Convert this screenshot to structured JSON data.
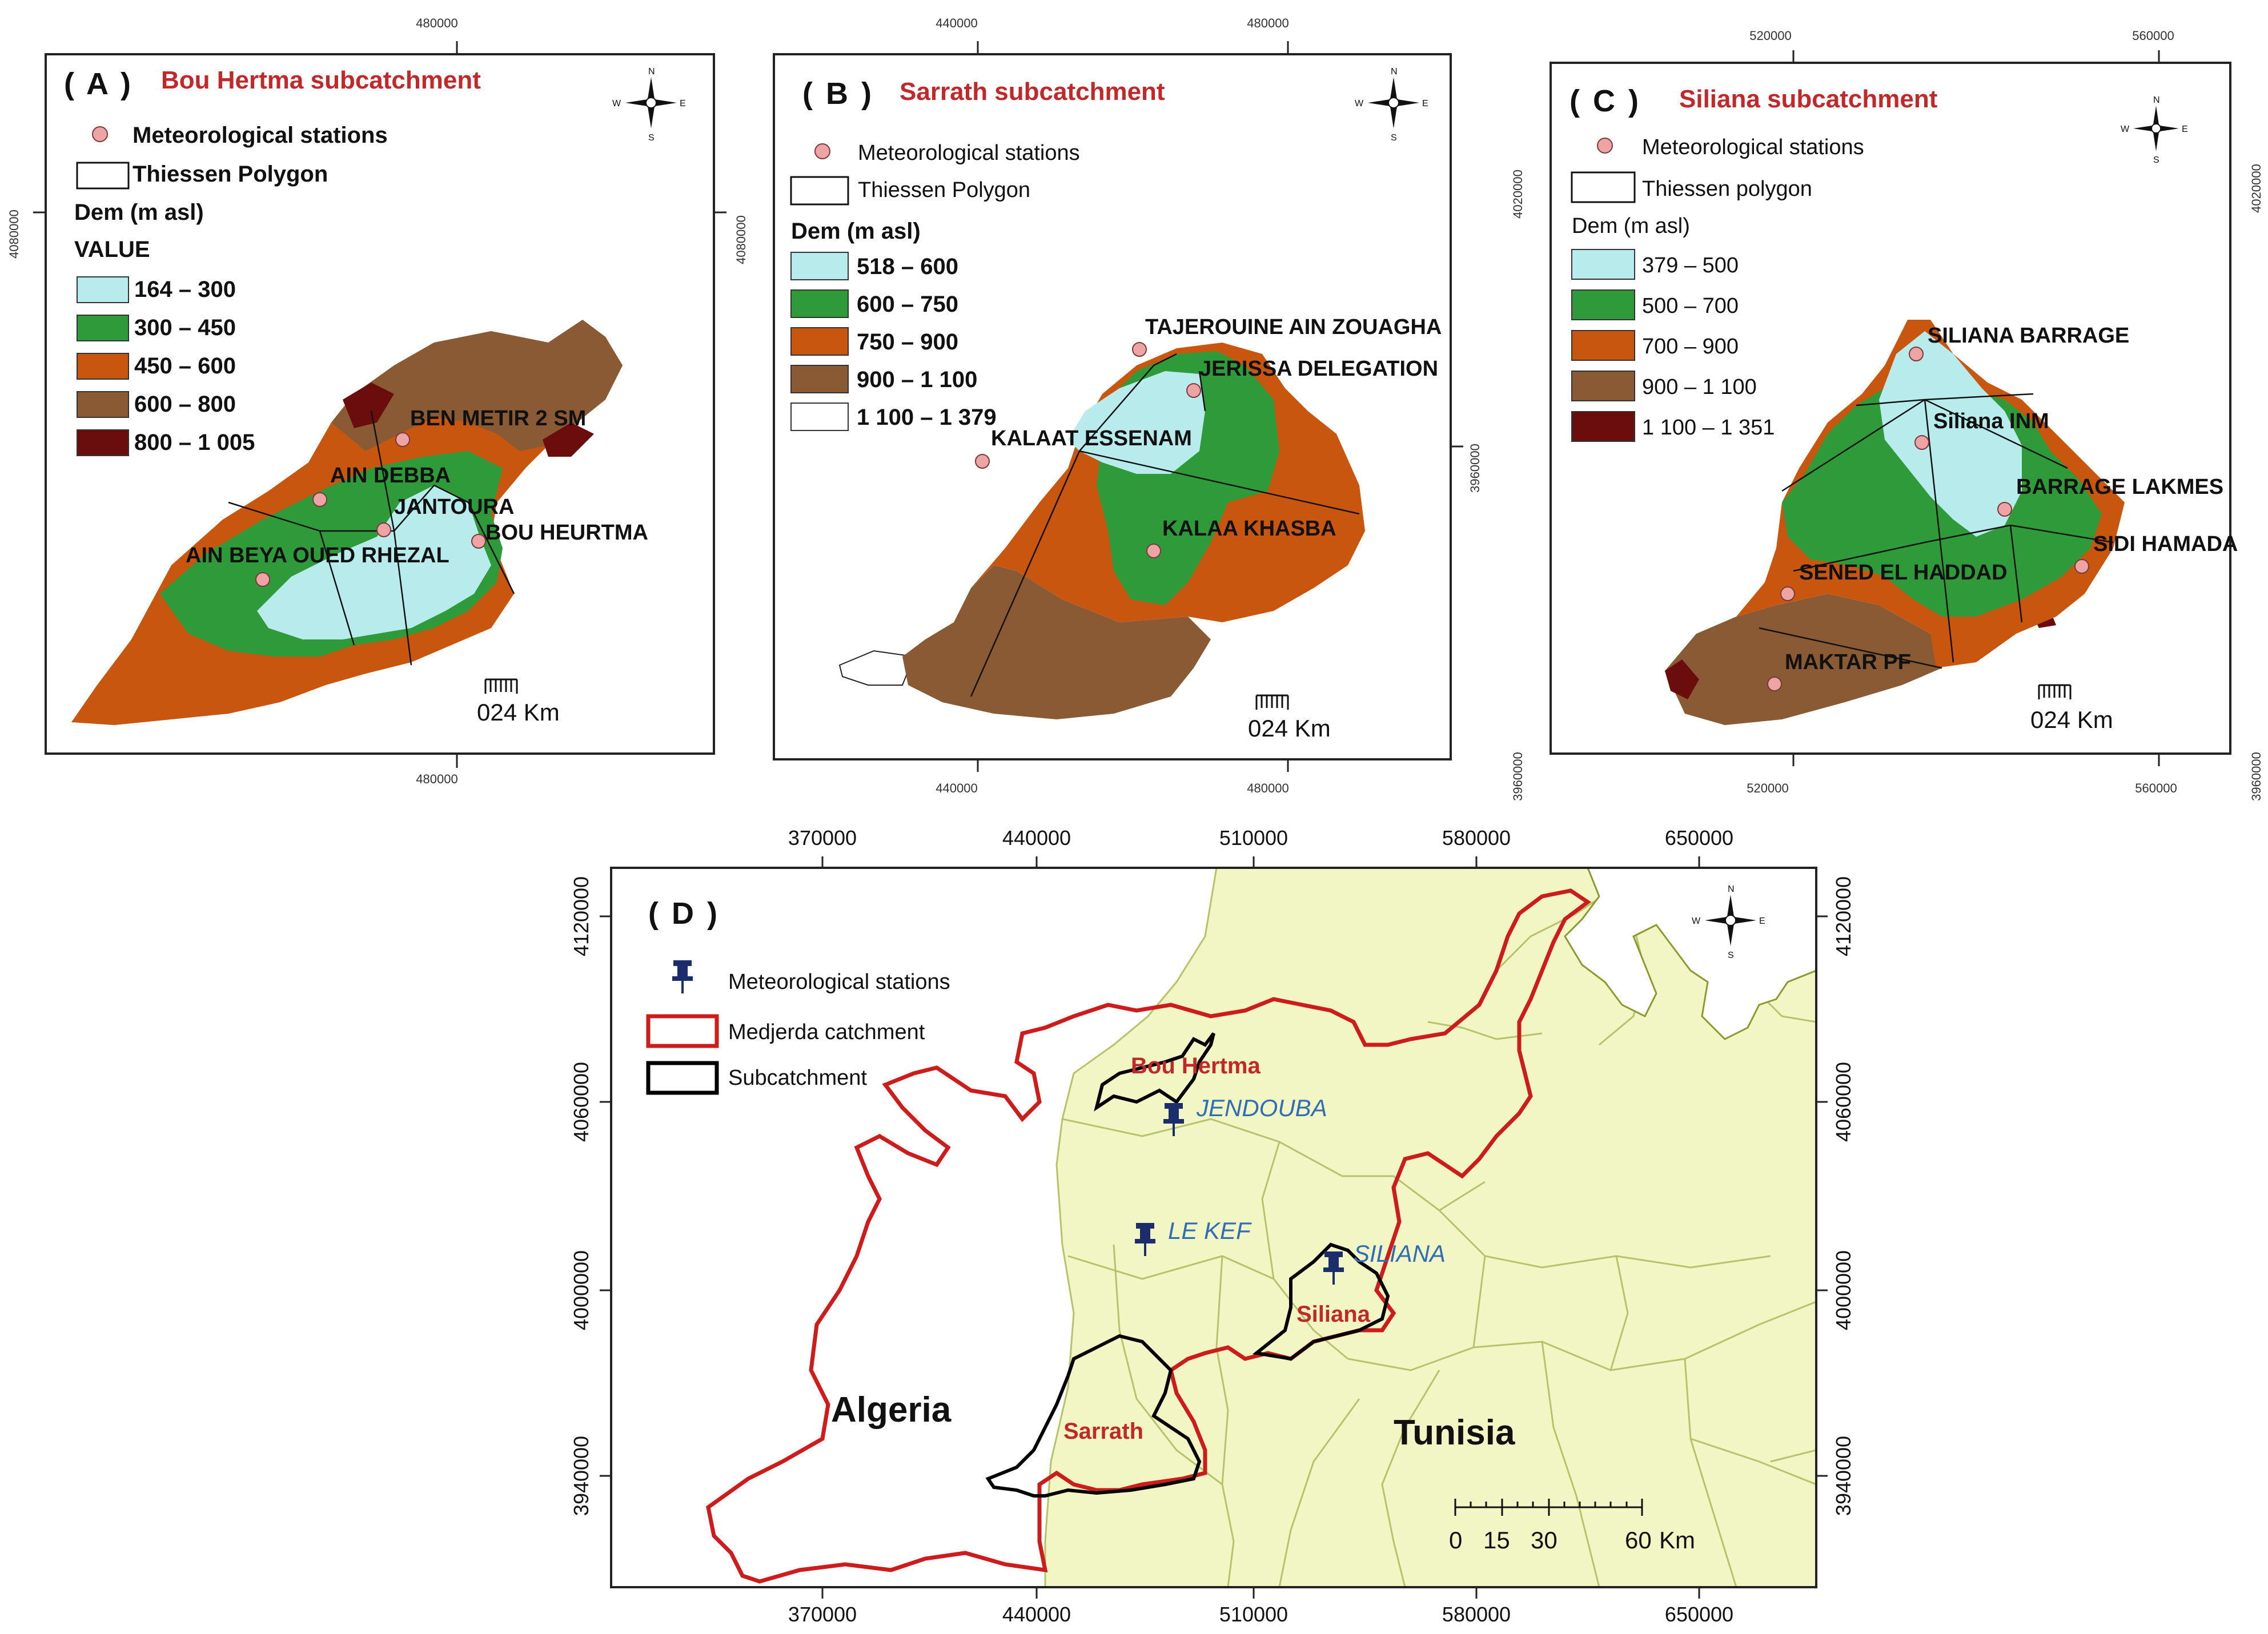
{
  "colors": {
    "c1": "#b8ecec",
    "c2": "#2f9a3a",
    "c3": "#c8560f",
    "c4": "#8a5a35",
    "c5": "#6b0d0d",
    "station": "#eea4a4",
    "map_bg": "#f2f5c4",
    "medjerda": "#cc1c1c",
    "subcatchment": "#000000",
    "pin": "#1b2d6b"
  },
  "panelA": {
    "label": "( A )",
    "title": "Bou Hertma subcatchment",
    "stations_legend": "Meteorological stations",
    "polygon_legend": "Thiessen Polygon",
    "dem_legend": "Dem (m asl)",
    "value_legend": "VALUE",
    "classes": [
      "164 – 300",
      "300 – 450",
      "450 – 600",
      "600 – 800",
      "800 – 1 005"
    ],
    "stations": [
      {
        "name": "BEN METIR 2 SM"
      },
      {
        "name": "AIN DEBBA"
      },
      {
        "name": "JANTOURA"
      },
      {
        "name": "BOU HEURTMA"
      },
      {
        "name": "AIN BEYA OUED RHEZAL"
      }
    ],
    "x_tick": "480000",
    "y_tick": "4080000",
    "scale": "024 Km",
    "compass": {
      "n": "N",
      "s": "S",
      "e": "E",
      "w": "W"
    }
  },
  "panelB": {
    "label": "( B )",
    "title": "Sarrath subcatchment",
    "stations_legend": "Meteorological stations",
    "polygon_legend": "Thiessen Polygon",
    "dem_legend": "Dem (m asl)",
    "classes": [
      "518 – 600",
      "600 – 750",
      "750 – 900",
      "900 – 1 100",
      "1 100 – 1 379"
    ],
    "stations": [
      {
        "name": "TAJEROUINE AIN ZOUAGHA"
      },
      {
        "name": "JERISSA DELEGATION"
      },
      {
        "name": "KALAAT ESSENAM"
      },
      {
        "name": "KALAA KHASBA"
      }
    ],
    "x_ticks": [
      "440000",
      "480000"
    ],
    "y_tick": "3960000",
    "scale": "024 Km",
    "compass": {
      "n": "N",
      "s": "S",
      "e": "E",
      "w": "W"
    }
  },
  "panelC": {
    "label": "( C )",
    "title": "Siliana subcatchment",
    "stations_legend": "Meteorological stations",
    "polygon_legend": "Thiessen polygon",
    "dem_legend": "Dem (m asl)",
    "classes": [
      "379 – 500",
      "500 – 700",
      "700 – 900",
      "900 – 1 100",
      "1 100 – 1 351"
    ],
    "stations": [
      {
        "name": "SILIANA BARRAGE"
      },
      {
        "name": "Siliana INM"
      },
      {
        "name": "BARRAGE LAKMES"
      },
      {
        "name": "SIDI HAMADA"
      },
      {
        "name": "SENED EL HADDAD"
      },
      {
        "name": "MAKTAR PF"
      }
    ],
    "x_ticks": [
      "520000",
      "560000"
    ],
    "y_ticks": [
      "4020000",
      "3960000"
    ],
    "scale": "024 Km",
    "compass": {
      "n": "N",
      "s": "S",
      "e": "E",
      "w": "W"
    }
  },
  "panelD": {
    "label": "( D )",
    "stations_legend": "Meteorological stations",
    "medjerda_legend": "Medjerda catchment",
    "subcatchment_legend": "Subcatchment",
    "x_ticks": [
      "370000",
      "440000",
      "510000",
      "580000",
      "650000"
    ],
    "y_ticks": [
      "4120000",
      "4060000",
      "4000000",
      "3940000"
    ],
    "cities": [
      "JENDOUBA",
      "LE KEF",
      "SILIANA"
    ],
    "subcatchments": [
      "Bou Hertma",
      "Sarrath",
      "Siliana"
    ],
    "countries": [
      "Algeria",
      "Tunisia"
    ],
    "scale_labels": [
      "0",
      "15",
      "30",
      "60",
      "Km"
    ],
    "compass": {
      "n": "N",
      "s": "S",
      "e": "E",
      "w": "W"
    }
  }
}
